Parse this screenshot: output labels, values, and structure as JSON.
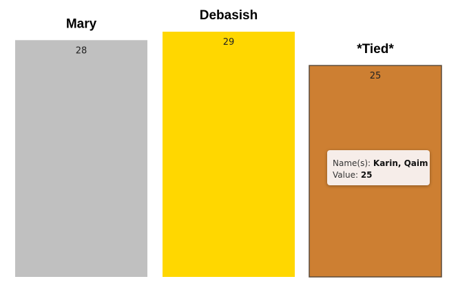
{
  "chart_data": {
    "type": "bar",
    "categories": [
      "Mary",
      "Debasish",
      "*Tied*"
    ],
    "values": [
      28,
      29,
      25
    ],
    "colors": [
      "#c0c0c0",
      "#ffd700",
      "#cd7f32"
    ],
    "ylim": [
      0,
      29
    ],
    "grid": false,
    "legend": "none"
  },
  "tooltip": {
    "name_label": "Name(s):",
    "name_value": "Karin, Qaim",
    "value_label": "Value:",
    "value_value": "25"
  }
}
